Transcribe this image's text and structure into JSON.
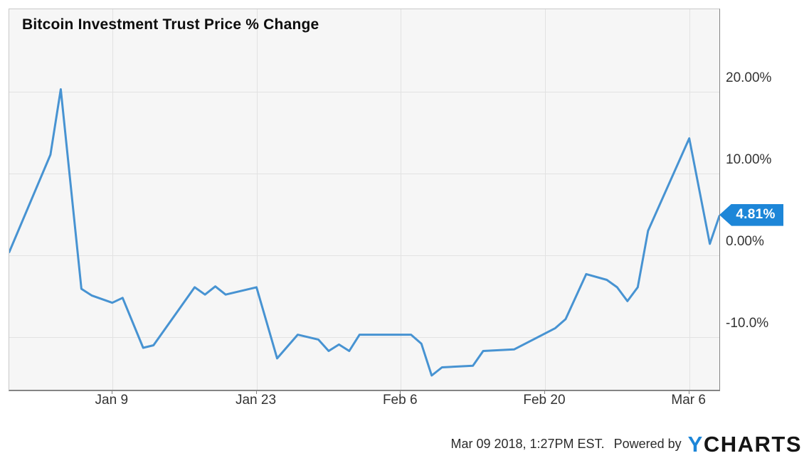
{
  "title": "Bitcoin Investment Trust Price % Change",
  "last_value_label": "4.81%",
  "footer": {
    "timestamp": "Mar 09 2018, 1:27PM EST.",
    "powered_by": "Powered by",
    "brand_first_letter": "Y",
    "brand_rest": "CHARTS"
  },
  "colors": {
    "line": "#4793d2",
    "badge": "#1d86d8",
    "plot_background": "#f6f6f6",
    "gridline": "#e2e2e2",
    "axis": "#858585",
    "tick_label": "#333333",
    "brand_blue": "#1d86d8"
  },
  "chart_data": {
    "type": "line",
    "title": "Bitcoin Investment Trust Price % Change",
    "xlabel": "",
    "ylabel": "Price % Change",
    "legend": "none",
    "grid": "on",
    "ylim": [
      -16.5,
      30
    ],
    "x_range": [
      "Dec 30 2017",
      "Mar 9 2018"
    ],
    "last_value": 4.81,
    "y_ticks": [
      {
        "value": 20,
        "label": "20.00%"
      },
      {
        "value": 10,
        "label": "10.00%"
      },
      {
        "value": 0,
        "label": "0.00%"
      },
      {
        "value": -10,
        "label": "-10.0%"
      }
    ],
    "x_ticks": [
      {
        "date": "Jan 9 2018",
        "label": "Jan 9"
      },
      {
        "date": "Jan 23 2018",
        "label": "Jan 23"
      },
      {
        "date": "Feb 6 2018",
        "label": "Feb 6"
      },
      {
        "date": "Feb 20 2018",
        "label": "Feb 20"
      },
      {
        "date": "Mar 6 2018",
        "label": "Mar 6"
      }
    ],
    "x": [
      "Dec 30 2017",
      "Jan 3 2018",
      "Jan 4 2018",
      "Jan 6 2018",
      "Jan 7 2018",
      "Jan 9 2018",
      "Jan 10 2018",
      "Jan 12 2018",
      "Jan 13 2018",
      "Jan 17 2018",
      "Jan 18 2018",
      "Jan 19 2018",
      "Jan 20 2018",
      "Jan 23 2018",
      "Jan 25 2018",
      "Jan 27 2018",
      "Jan 29 2018",
      "Jan 30 2018",
      "Jan 31 2018",
      "Feb 1 2018",
      "Feb 2 2018",
      "Feb 7 2018",
      "Feb 8 2018",
      "Feb 9 2018",
      "Feb 10 2018",
      "Feb 13 2018",
      "Feb 14 2018",
      "Feb 17 2018",
      "Feb 21 2018",
      "Feb 22 2018",
      "Feb 24 2018",
      "Feb 26 2018",
      "Feb 27 2018",
      "Feb 28 2018",
      "Mar 1 2018",
      "Mar 2 2018",
      "Mar 6 2018",
      "Mar 8 2018",
      "Mar 9 2018"
    ],
    "values": [
      0.4,
      12.3,
      20.3,
      -4.1,
      -4.9,
      -5.8,
      -5.2,
      -11.3,
      -11.0,
      -3.9,
      -4.8,
      -3.8,
      -4.8,
      -3.9,
      -12.6,
      -9.7,
      -10.3,
      -11.7,
      -10.9,
      -11.7,
      -9.7,
      -9.7,
      -10.8,
      -14.7,
      -13.7,
      -13.5,
      -11.7,
      -11.5,
      -8.9,
      -7.8,
      -2.3,
      -3.0,
      -3.9,
      -5.6,
      -3.9,
      3.0,
      14.3,
      1.4,
      4.81
    ]
  }
}
